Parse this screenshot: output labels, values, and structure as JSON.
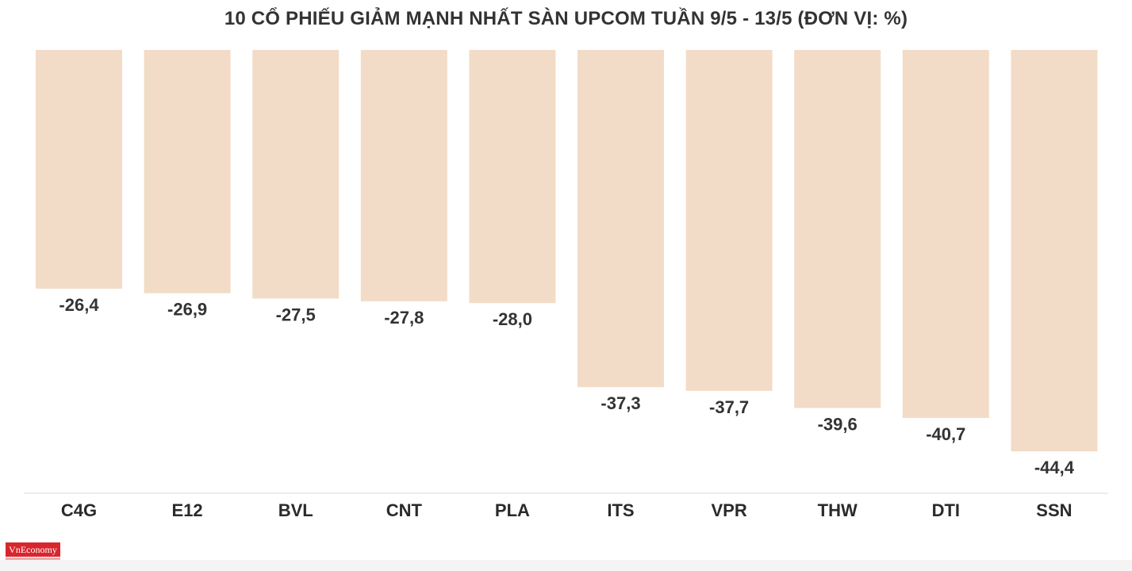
{
  "chart_data": {
    "type": "bar",
    "title": "10 CỔ PHIẾU GIẢM MẠNH NHẤT SÀN UPCOM TUẦN 9/5 - 13/5 (ĐƠN VỊ: %)",
    "categories": [
      "C4G",
      "E12",
      "BVL",
      "CNT",
      "PLA",
      "ITS",
      "VPR",
      "THW",
      "DTI",
      "SSN"
    ],
    "values": [
      -26.4,
      -26.9,
      -27.5,
      -27.8,
      -28.0,
      -37.3,
      -37.7,
      -39.6,
      -40.7,
      -44.4
    ],
    "value_labels": [
      "-26,4",
      "-26,9",
      "-27,5",
      "-27,8",
      "-28,0",
      "-37,3",
      "-37,7",
      "-39,6",
      "-40,7",
      "-44,4"
    ],
    "xlabel": "",
    "ylabel": "",
    "grid": false,
    "bar_color": "#f2dcc8"
  },
  "logo_text": "VnEconomy"
}
